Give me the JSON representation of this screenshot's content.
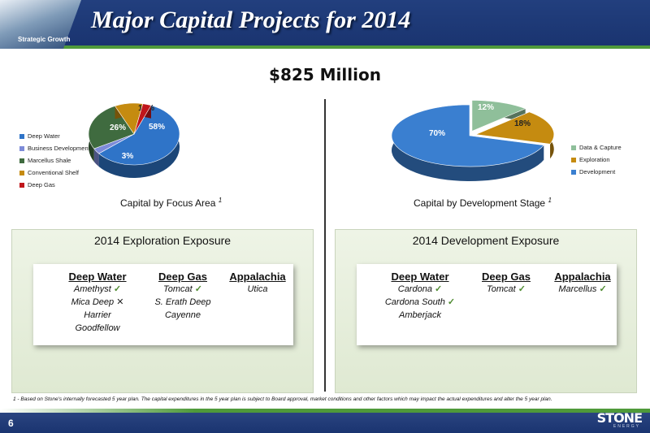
{
  "header": {
    "title": "Major Capital Projects for 2014",
    "logo_text": "Strategic Growth"
  },
  "total": "$825 Million",
  "chart_data": [
    {
      "type": "pie",
      "title": "Capital by Focus Area",
      "title_note": "1",
      "slices": [
        {
          "label": "Deep Water",
          "value": 58,
          "display": "58%",
          "color": "#2f74c8"
        },
        {
          "label": "Business Development",
          "value": 3,
          "display": "3%",
          "color": "#7d8bd8"
        },
        {
          "label": "Marcellus Shale",
          "value": 26,
          "display": "26%",
          "color": "#3f6b3f"
        },
        {
          "label": "Conventional Shelf",
          "value": 10,
          "display": "10%",
          "color": "#c58b10"
        },
        {
          "label": "Deep Gas",
          "value": 3,
          "display": "3%",
          "color": "#c0161b"
        }
      ],
      "legend_position": "left"
    },
    {
      "type": "pie",
      "title": "Capital by Development Stage",
      "title_note": "1",
      "slices": [
        {
          "label": "Data & Capture",
          "value": 12,
          "display": "12%",
          "color": "#8fbf9a"
        },
        {
          "label": "Exploration",
          "value": 18,
          "display": "18%",
          "color": "#c58b10"
        },
        {
          "label": "Development",
          "value": 70,
          "display": "70%",
          "color": "#3a7fd0"
        }
      ],
      "legend_position": "right"
    }
  ],
  "exploration": {
    "title": "2014 Exploration Exposure",
    "columns": [
      {
        "head": "Deep Water",
        "items": [
          {
            "text": "Amethyst",
            "mark": "✓"
          },
          {
            "text": "Mica Deep",
            "mark": "✕"
          },
          {
            "text": "Harrier",
            "mark": ""
          },
          {
            "text": "Goodfellow",
            "mark": ""
          }
        ]
      },
      {
        "head": "Deep Gas",
        "items": [
          {
            "text": "Tomcat",
            "mark": "✓"
          },
          {
            "text": "S. Erath Deep",
            "mark": ""
          },
          {
            "text": "Cayenne",
            "mark": ""
          }
        ]
      },
      {
        "head": "Appalachia",
        "items": [
          {
            "text": "Utica",
            "mark": ""
          }
        ]
      }
    ]
  },
  "development": {
    "title": "2014 Development Exposure",
    "columns": [
      {
        "head": "Deep Water",
        "items": [
          {
            "text": "Cardona",
            "mark": "✓"
          },
          {
            "text": "Cardona South",
            "mark": "✓"
          },
          {
            "text": "Amberjack",
            "mark": ""
          }
        ]
      },
      {
        "head": "Deep Gas",
        "items": [
          {
            "text": "Tomcat",
            "mark": "✓"
          }
        ]
      },
      {
        "head": "Appalachia",
        "items": [
          {
            "text": "Marcellus",
            "mark": "✓"
          }
        ]
      }
    ]
  },
  "footnote": "1 - Based on Stone's internally forecasted 5 year plan. The capital expenditures in the 5 year plan is subject to Board approval, market conditions and other factors which may impact the actual expenditures and alter the 5 year plan.",
  "footer": {
    "page_number": "6",
    "brand": "STONE",
    "brand_sub": "ENERGY"
  }
}
